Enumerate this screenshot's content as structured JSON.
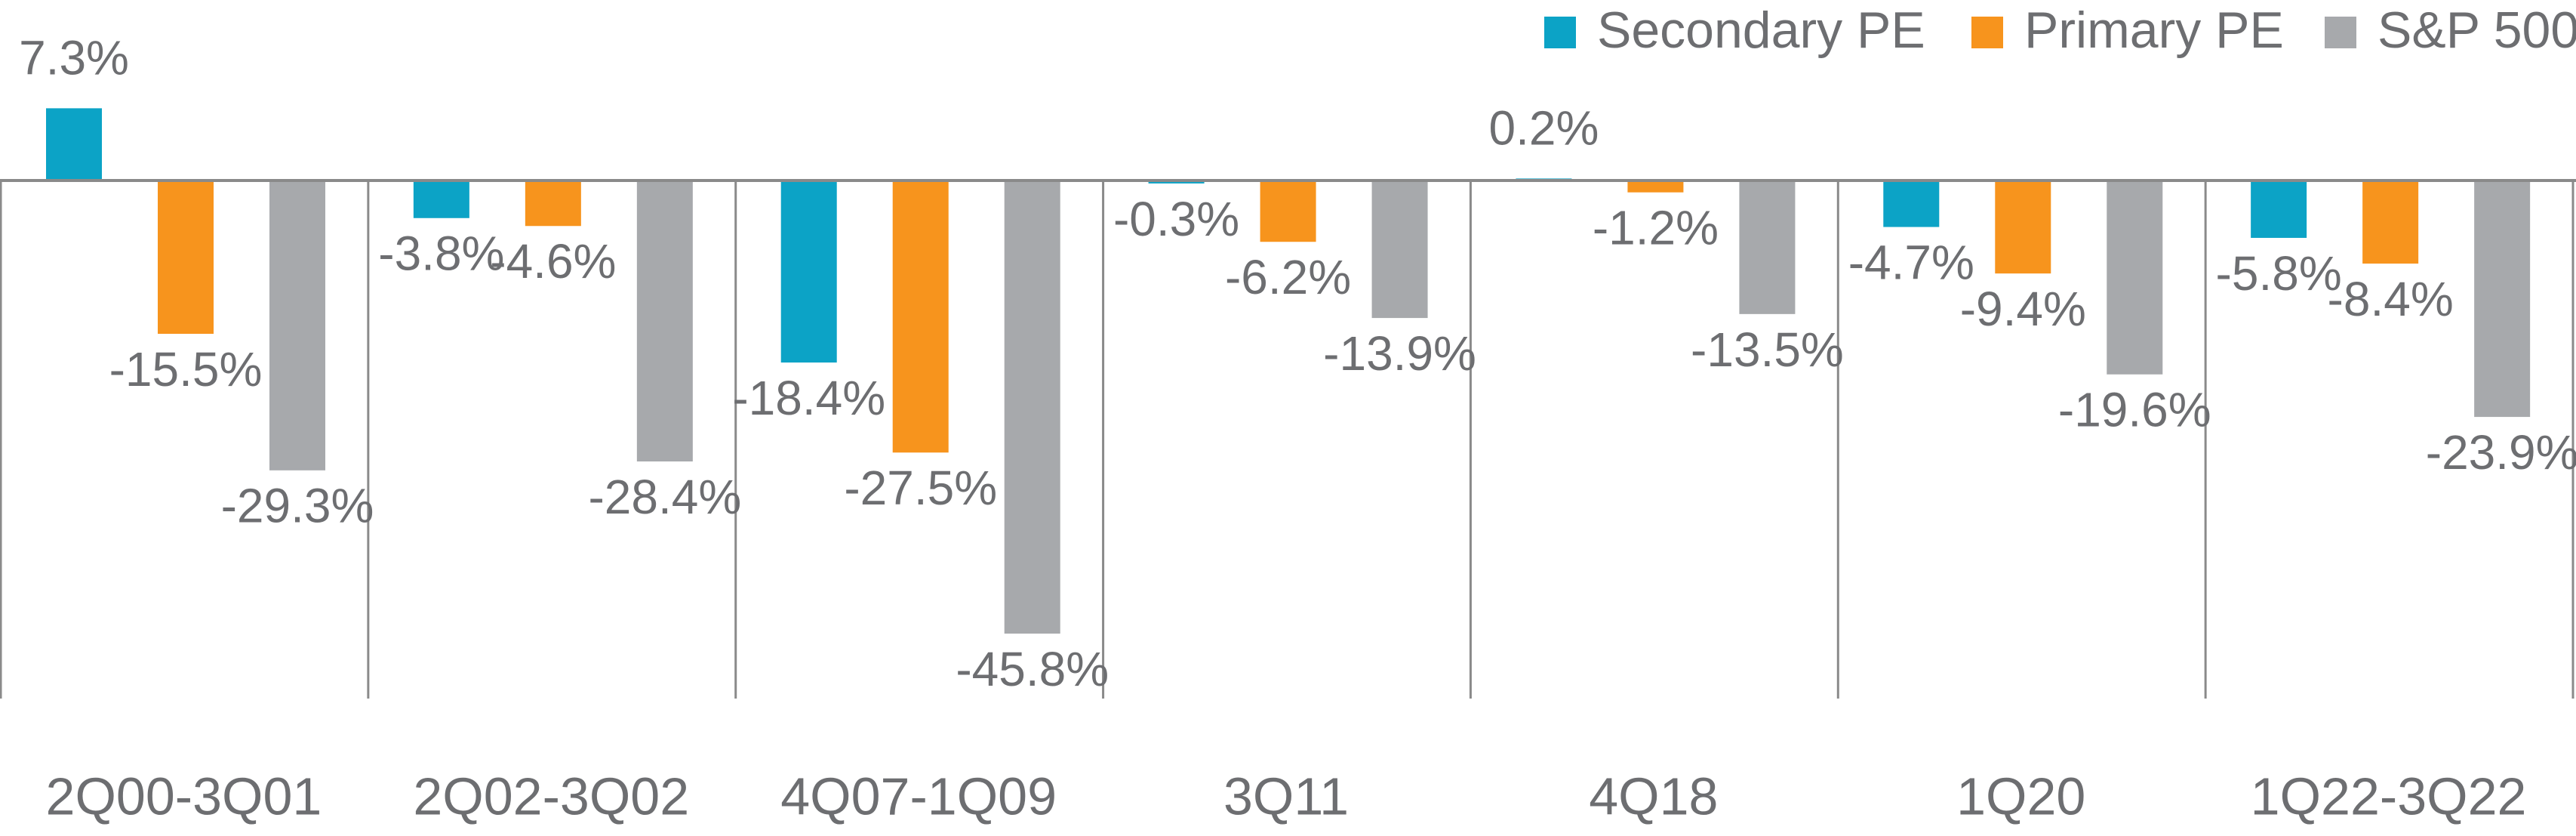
{
  "chart_data": {
    "type": "bar",
    "categories": [
      "2Q00-3Q01",
      "2Q02-3Q02",
      "4Q07-1Q09",
      "3Q11",
      "4Q18",
      "1Q20",
      "1Q22-3Q22"
    ],
    "series": [
      {
        "name": "Secondary PE",
        "color": "#0ca3c6",
        "values": [
          7.3,
          -3.8,
          -18.4,
          -0.3,
          0.2,
          -4.7,
          -5.8
        ],
        "value_labels": [
          "7.3%",
          "-3.8%",
          "-18.4%",
          "-0.3%",
          "0.2%",
          "-4.7%",
          "-5.8%"
        ]
      },
      {
        "name": "Primary PE",
        "color": "#f7941d",
        "values": [
          -15.5,
          -4.6,
          -27.5,
          -6.2,
          -1.2,
          -9.4,
          -8.4
        ],
        "value_labels": [
          "-15.5%",
          "-4.6%",
          "-27.5%",
          "-6.2%",
          "-1.2%",
          "-9.4%",
          "-8.4%"
        ]
      },
      {
        "name": "S&P 500",
        "color": "#a7a9ac",
        "values": [
          -29.3,
          -28.4,
          -45.8,
          -13.9,
          -13.5,
          -19.6,
          -23.9
        ],
        "value_labels": [
          "-29.3%",
          "-28.4%",
          "-45.8%",
          "-13.9%",
          "-13.5%",
          "-19.6%",
          "-23.9%"
        ]
      }
    ],
    "legend": "top-right"
  }
}
